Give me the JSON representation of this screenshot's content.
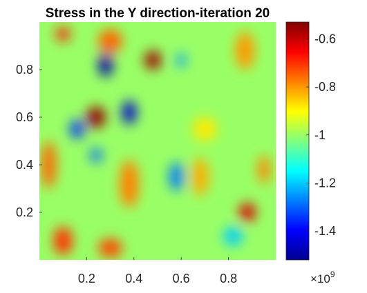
{
  "chart_data": {
    "type": "heatmap",
    "title": "Stress in the Y direction-iteration 20",
    "xlabel": "",
    "ylabel": "",
    "xlim": [
      0,
      1
    ],
    "ylim": [
      0,
      1
    ],
    "x_ticks": [
      "0.2",
      "0.4",
      "0.6",
      "0.8"
    ],
    "x_tick_values": [
      0.2,
      0.4,
      0.6,
      0.8
    ],
    "y_ticks": [
      "0.2",
      "0.4",
      "0.6",
      "0.8"
    ],
    "y_tick_values": [
      0.2,
      0.4,
      0.6,
      0.8
    ],
    "colormap": "jet",
    "colorbar": {
      "range": [
        -1.52,
        -0.53
      ],
      "ticks": [
        "-1.4",
        "-1.2",
        "-1",
        "-0.8",
        "-0.6"
      ],
      "tick_values": [
        -1.4,
        -1.2,
        -1.0,
        -0.8,
        -0.6
      ],
      "multiplier": "×10",
      "exponent": "9"
    },
    "background_value": -1.0,
    "features": [
      {
        "x": 0.48,
        "y": 0.84,
        "value": -0.56,
        "sx": 0.035,
        "sy": 0.04
      },
      {
        "x": 0.24,
        "y": 0.6,
        "value": -0.55,
        "sx": 0.04,
        "sy": 0.045
      },
      {
        "x": 0.88,
        "y": 0.2,
        "value": -0.62,
        "sx": 0.035,
        "sy": 0.04
      },
      {
        "x": 0.1,
        "y": 0.95,
        "value": -0.68,
        "sx": 0.03,
        "sy": 0.03
      },
      {
        "x": 0.04,
        "y": 0.4,
        "value": -0.75,
        "sx": 0.03,
        "sy": 0.1
      },
      {
        "x": 0.1,
        "y": 0.08,
        "value": -0.7,
        "sx": 0.04,
        "sy": 0.06
      },
      {
        "x": 0.3,
        "y": 0.05,
        "value": -0.72,
        "sx": 0.05,
        "sy": 0.04
      },
      {
        "x": 0.38,
        "y": 0.32,
        "value": -0.78,
        "sx": 0.04,
        "sy": 0.1
      },
      {
        "x": 0.87,
        "y": 0.88,
        "value": -0.8,
        "sx": 0.04,
        "sy": 0.08
      },
      {
        "x": 0.68,
        "y": 0.35,
        "value": -0.82,
        "sx": 0.035,
        "sy": 0.08
      },
      {
        "x": 0.3,
        "y": 0.92,
        "value": -0.75,
        "sx": 0.05,
        "sy": 0.05
      },
      {
        "x": 0.95,
        "y": 0.38,
        "value": -0.78,
        "sx": 0.025,
        "sy": 0.06
      },
      {
        "x": 0.28,
        "y": 0.82,
        "value": -1.48,
        "sx": 0.03,
        "sy": 0.05
      },
      {
        "x": 0.38,
        "y": 0.62,
        "value": -1.45,
        "sx": 0.03,
        "sy": 0.05
      },
      {
        "x": 0.16,
        "y": 0.55,
        "value": -1.35,
        "sx": 0.03,
        "sy": 0.04
      },
      {
        "x": 0.24,
        "y": 0.44,
        "value": -1.3,
        "sx": 0.025,
        "sy": 0.03
      },
      {
        "x": 0.6,
        "y": 0.84,
        "value": -1.25,
        "sx": 0.02,
        "sy": 0.03
      },
      {
        "x": 0.58,
        "y": 0.35,
        "value": -1.28,
        "sx": 0.03,
        "sy": 0.06
      },
      {
        "x": 0.82,
        "y": 0.1,
        "value": -1.2,
        "sx": 0.04,
        "sy": 0.04
      },
      {
        "x": 0.7,
        "y": 0.55,
        "value": -0.88,
        "sx": 0.05,
        "sy": 0.05
      }
    ]
  }
}
